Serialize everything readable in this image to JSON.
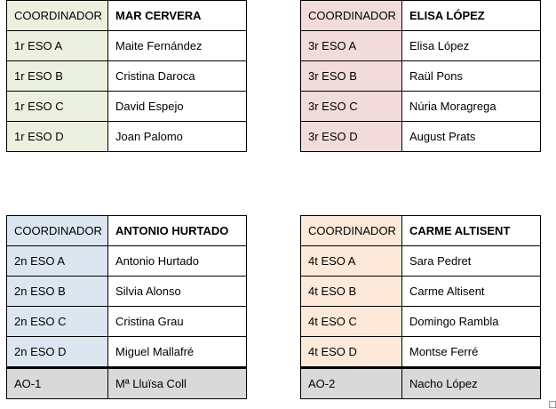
{
  "tables": [
    {
      "header": [
        "COORDINADOR",
        "MAR CERVERA"
      ],
      "rows": [
        [
          "1r ESO A",
          "Maite Fernández"
        ],
        [
          "1r ESO B",
          "Cristina Daroca"
        ],
        [
          "1r ESO C",
          "David Espejo"
        ],
        [
          "1r ESO D",
          "Joan Palomo"
        ]
      ],
      "colors": {
        "label_bg": "#ebf1de"
      }
    },
    {
      "header": [
        "COORDINADOR",
        "ELISA LÓPEZ"
      ],
      "rows": [
        [
          "3r ESO A",
          "Elisa  López"
        ],
        [
          "3r ESO B",
          "Raül Pons"
        ],
        [
          "3r ESO C",
          "Núria Moragrega"
        ],
        [
          "3r ESO D",
          "August Prats"
        ]
      ],
      "colors": {
        "label_bg": "#f2dcdb"
      }
    },
    {
      "header": [
        "COORDINADOR",
        "ANTONIO HURTADO"
      ],
      "rows": [
        [
          "2n ESO A",
          "Antonio  Hurtado"
        ],
        [
          "2n ESO B",
          "Silvia Alonso"
        ],
        [
          "2n ESO C",
          "Cristina Grau"
        ],
        [
          "2n ESO D",
          "Miguel Mallafré"
        ]
      ],
      "extra": [
        "AO-1",
        "Mª Lluïsa Coll"
      ],
      "colors": {
        "label_bg": "#dce6f1",
        "extra_bg": "#d9d9d9"
      }
    },
    {
      "header": [
        "COORDINADOR",
        "CARME ALTISENT"
      ],
      "rows": [
        [
          "4t ESO A",
          "Sara Pedret"
        ],
        [
          "4t ESO B",
          "Carme Altisent"
        ],
        [
          "4t ESO C",
          "Domingo Rambla"
        ],
        [
          "4t ESO D",
          "Montse  Ferré"
        ]
      ],
      "extra": [
        "AO-2",
        "Nacho López"
      ],
      "colors": {
        "label_bg": "#fde9d9",
        "extra_bg": "#d9d9d9"
      }
    }
  ]
}
